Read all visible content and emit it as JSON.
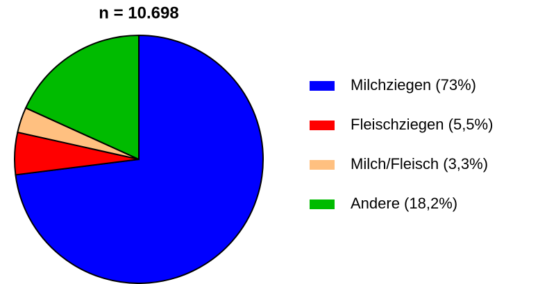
{
  "chart_data": {
    "type": "pie",
    "title": "n = 10.698",
    "categories": [
      "Milchziegen (73%)",
      "Fleischziegen (5,5%)",
      "Milch/Fleisch (3,3%)",
      "Andere (18,2%)"
    ],
    "values": [
      73,
      5.5,
      3.3,
      18.2
    ],
    "colors": [
      "#0000ff",
      "#ff0000",
      "#ffc080",
      "#00bb00"
    ],
    "legend": "right"
  }
}
